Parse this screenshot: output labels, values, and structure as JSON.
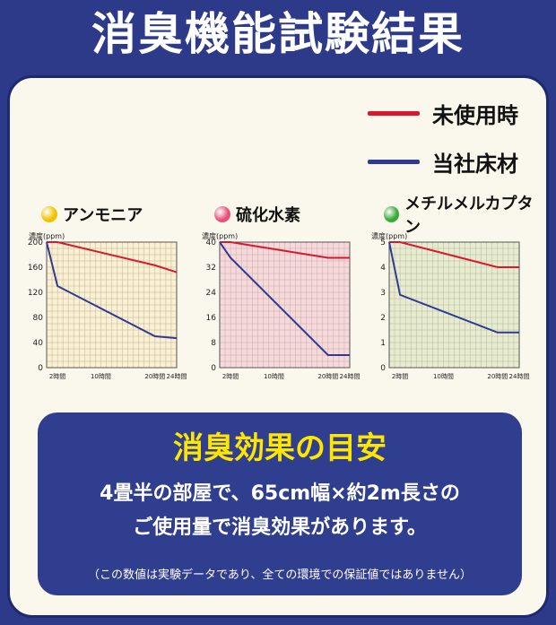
{
  "title": "消臭機能試験結果",
  "legend": {
    "unused": {
      "label": "未使用時",
      "color": "#d7192f"
    },
    "ours": {
      "label": "当社床材",
      "color": "#2e3a94"
    }
  },
  "chart_data": [
    {
      "type": "line",
      "title": "アンモニア",
      "marker_color": "#f2c200",
      "bg_color": "#fbf0d2",
      "ylabel": "濃度(ppm)",
      "ylim": [
        0,
        200
      ],
      "yticks": [
        "0",
        "40",
        "80",
        "120",
        "160",
        "200"
      ],
      "xlim": [
        0,
        24
      ],
      "xticks": [
        {
          "x": 2,
          "label": "2時間"
        },
        {
          "x": 10,
          "label": "10時間"
        },
        {
          "x": 20,
          "label": "20時間"
        },
        {
          "x": 24,
          "label": "24時間"
        }
      ],
      "series": [
        {
          "name": "未使用時",
          "x": [
            0,
            2,
            20,
            24
          ],
          "values": [
            200,
            200,
            163,
            152
          ]
        },
        {
          "name": "当社床材",
          "x": [
            0,
            2,
            20,
            24
          ],
          "values": [
            200,
            130,
            50,
            47
          ]
        }
      ]
    },
    {
      "type": "line",
      "title": "硫化水素",
      "marker_color": "#e8507a",
      "bg_color": "#f8d8dd",
      "ylabel": "濃度(ppm)",
      "ylim": [
        0,
        40
      ],
      "yticks": [
        "0",
        "8",
        "16",
        "24",
        "32",
        "40"
      ],
      "xlim": [
        0,
        24
      ],
      "xticks": [
        {
          "x": 2,
          "label": "2時間"
        },
        {
          "x": 10,
          "label": "10時間"
        },
        {
          "x": 20,
          "label": "20時間"
        },
        {
          "x": 24,
          "label": "24時間"
        }
      ],
      "series": [
        {
          "name": "未使用時",
          "x": [
            0,
            2,
            20,
            24
          ],
          "values": [
            40,
            40,
            35,
            35
          ]
        },
        {
          "name": "当社床材",
          "x": [
            0,
            2,
            20,
            24
          ],
          "values": [
            40,
            35,
            4,
            4
          ]
        }
      ]
    },
    {
      "type": "line",
      "title": "メチルメルカプタン",
      "marker_color": "#3aaa35",
      "bg_color": "#e6eccf",
      "ylabel": "濃度(ppm)",
      "ylim": [
        0,
        5
      ],
      "yticks": [
        "0",
        "1",
        "2",
        "3",
        "4",
        "5"
      ],
      "xlim": [
        0,
        24
      ],
      "xticks": [
        {
          "x": 2,
          "label": "2時間"
        },
        {
          "x": 10,
          "label": "10時間"
        },
        {
          "x": 20,
          "label": "20時間"
        },
        {
          "x": 24,
          "label": "24時間"
        }
      ],
      "series": [
        {
          "name": "未使用時",
          "x": [
            0,
            2,
            20,
            24
          ],
          "values": [
            5,
            5,
            4,
            4
          ]
        },
        {
          "name": "当社床材",
          "x": [
            0,
            2,
            20,
            24
          ],
          "values": [
            5,
            2.9,
            1.4,
            1.4
          ]
        }
      ]
    }
  ],
  "guide": {
    "title": "消臭効果の目安",
    "line1": "4畳半の部屋で、65cm幅×約2m長さの",
    "line2": "ご使用量で消臭効果があります。",
    "note": "（この数値は実験データであり、全ての環境での保証値ではありません）"
  }
}
